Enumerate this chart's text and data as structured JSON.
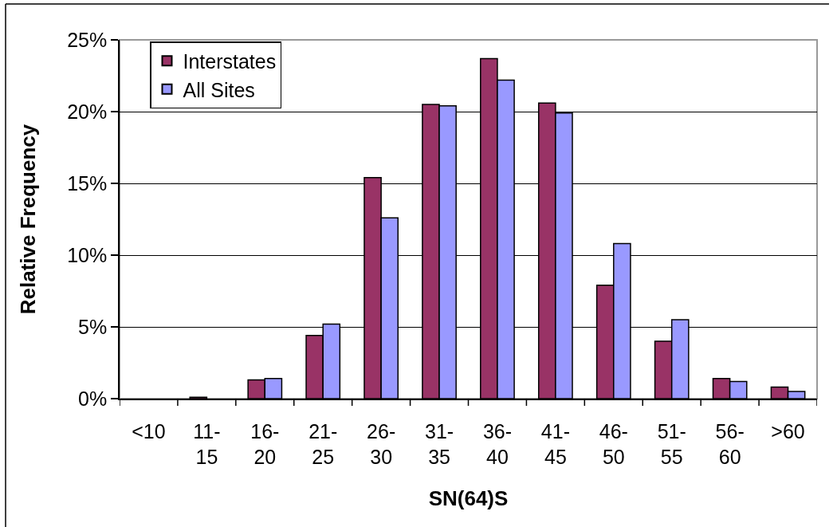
{
  "chart_data": {
    "type": "bar",
    "xlabel": "SN(64)S",
    "ylabel": "Relative Frequency",
    "categories": [
      "<10",
      "11-15",
      "16-20",
      "21-25",
      "26-30",
      "31-35",
      "36-40",
      "41-45",
      "46-50",
      "51-55",
      "56-60",
      ">60"
    ],
    "series": [
      {
        "name": "Interstates",
        "color": "#993366",
        "values": [
          null,
          0.1,
          1.3,
          4.4,
          15.4,
          20.5,
          23.7,
          20.6,
          7.9,
          4.0,
          1.4,
          0.8
        ]
      },
      {
        "name": "All Sites",
        "color": "#9999ff",
        "values": [
          null,
          null,
          1.4,
          5.2,
          12.6,
          20.4,
          22.2,
          19.9,
          10.8,
          5.5,
          1.2,
          0.5
        ]
      }
    ],
    "ylim": [
      0,
      25
    ],
    "yticks": [
      {
        "value": 0,
        "label": "0%"
      },
      {
        "value": 5,
        "label": "5%"
      },
      {
        "value": 10,
        "label": "10%"
      },
      {
        "value": 15,
        "label": "15%"
      },
      {
        "value": 20,
        "label": "20%"
      },
      {
        "value": 25,
        "label": "25%"
      }
    ],
    "grid": "y",
    "legend": "top left"
  }
}
